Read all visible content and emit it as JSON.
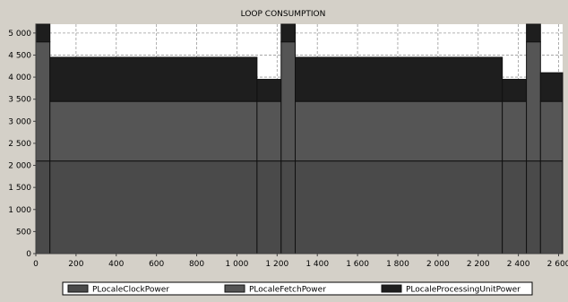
{
  "chart_data": {
    "type": "area",
    "title": "LOOP CONSUMPTION",
    "xlabel": "",
    "ylabel": "",
    "xlim": [
      0,
      2620
    ],
    "ylim": [
      0,
      5200
    ],
    "x_ticks": [
      0,
      200,
      400,
      600,
      800,
      1000,
      1200,
      1400,
      1600,
      1800,
      2000,
      2200,
      2400,
      2600
    ],
    "x_tick_labels": [
      "0",
      "200",
      "400",
      "600",
      "800",
      "1 000",
      "1 200",
      "1 400",
      "1 600",
      "1 800",
      "2 000",
      "2 200",
      "2 400",
      "2 600"
    ],
    "y_ticks": [
      0,
      500,
      1000,
      1500,
      2000,
      2500,
      3000,
      3500,
      4000,
      4500,
      5000
    ],
    "y_tick_labels": [
      "0",
      "500",
      "1 000",
      "1 500",
      "2 000",
      "2 500",
      "3 000",
      "3 500",
      "4 000",
      "4 500",
      "5 000"
    ],
    "stacked": true,
    "step": true,
    "grid": true,
    "legend_position": "bottom",
    "segments": [
      {
        "x_start": 0,
        "x_end": 70,
        "clock": 2100,
        "fetch": 2700,
        "processing": 400
      },
      {
        "x_start": 70,
        "x_end": 1100,
        "clock": 2100,
        "fetch": 1350,
        "processing": 1000
      },
      {
        "x_start": 1100,
        "x_end": 1220,
        "clock": 2100,
        "fetch": 1350,
        "processing": 500
      },
      {
        "x_start": 1220,
        "x_end": 1290,
        "clock": 2100,
        "fetch": 2700,
        "processing": 400
      },
      {
        "x_start": 1290,
        "x_end": 2320,
        "clock": 2100,
        "fetch": 1350,
        "processing": 1000
      },
      {
        "x_start": 2320,
        "x_end": 2440,
        "clock": 2100,
        "fetch": 1350,
        "processing": 500
      },
      {
        "x_start": 2440,
        "x_end": 2510,
        "clock": 2100,
        "fetch": 2700,
        "processing": 400
      },
      {
        "x_start": 2510,
        "x_end": 2620,
        "clock": 2100,
        "fetch": 1350,
        "processing": 650
      }
    ],
    "series": [
      {
        "name": "PLocaleClockPower",
        "key": "clock",
        "color": "#4a4a4a"
      },
      {
        "name": "PLocaleFetchPower",
        "key": "fetch",
        "color": "#555555"
      },
      {
        "name": "PLocaleProcessingUnitPower",
        "key": "processing",
        "color": "#1e1e1e"
      }
    ]
  },
  "colors": {
    "window_bg": "#d4d0c8",
    "plot_bg": "#ffffff",
    "grid": "#9a9a9a",
    "axis": "#404040",
    "text": "#000000"
  }
}
